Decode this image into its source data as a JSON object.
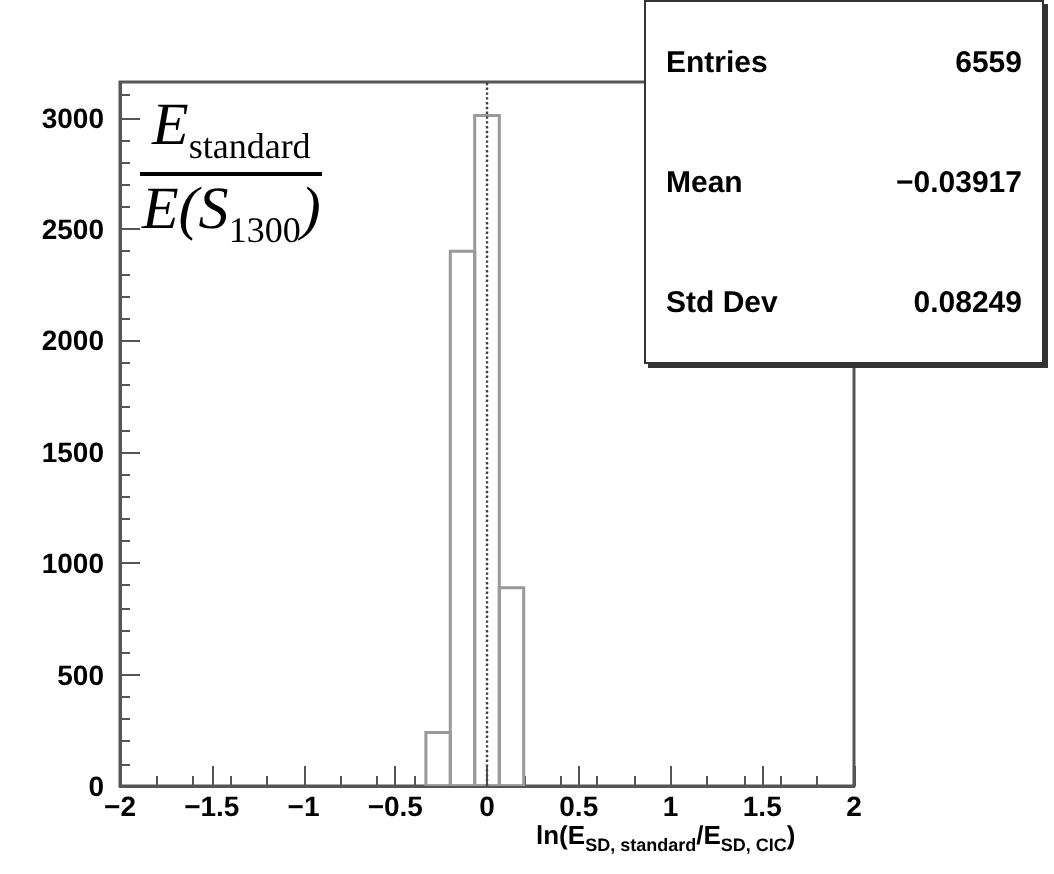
{
  "chart_data": {
    "type": "histogram",
    "xlabel": "ln(E$_{SD, standard}$/E$_{SD, CIC}$)",
    "bins": [
      -0.333,
      -0.2,
      -0.067,
      0.067,
      0.2
    ],
    "values": [
      240,
      2400,
      3010,
      890
    ],
    "color": "#999999",
    "xlim": [
      -2,
      2
    ],
    "xticks": [
      -2,
      -1.5,
      -1,
      -0.5,
      0,
      0.5,
      1,
      1.5,
      2
    ],
    "ylim": [
      0,
      3160
    ],
    "yticks": [
      0,
      500,
      1000,
      1500,
      2000,
      2500,
      3000
    ],
    "grid": false,
    "ref_lines": [
      {
        "axis": "x",
        "value": 0,
        "line_style": "dotted",
        "color": "#444444"
      }
    ],
    "annotations": [
      "E$_{standard}$",
      "E(S$_{1300}$)",
      "Entries 6559",
      "Mean −0.03917",
      "Std Dev 0.08249"
    ]
  }
}
